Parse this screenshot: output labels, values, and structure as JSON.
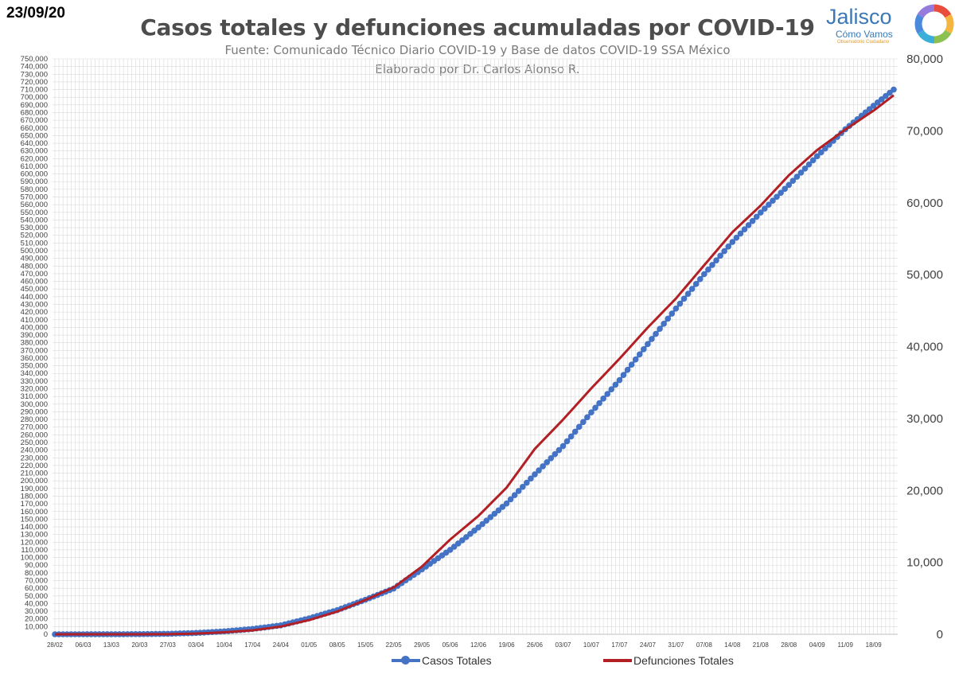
{
  "header": {
    "date": "23/09/20",
    "title": "Casos totales y defunciones acumuladas por COVID-19",
    "subtitle1": "Fuente: Comunicado Técnico Diario COVID-19 y Base de datos COVID-19 SSA México",
    "subtitle2": "Elaborado por Dr. Carlos Alonso R."
  },
  "logo": {
    "name": "Jalisco",
    "sub": "Cómo Vamos",
    "tag": "Observatorio Ciudadano",
    "ring_colors": [
      "#e94e3c",
      "#f4b63f",
      "#8cc152",
      "#3bafda",
      "#4a89dc",
      "#967adc"
    ]
  },
  "legend": {
    "casos": "Casos Totales",
    "defunciones": "Defunciones Totales"
  },
  "colors": {
    "casos": "#4472c4",
    "defunciones": "#b21f24",
    "grid": "#d9d9d9"
  },
  "chart_data": {
    "type": "line",
    "title": "Casos totales y defunciones acumuladas por COVID-19",
    "x_tick_labels": [
      "28/02",
      "06/03",
      "13/03",
      "20/03",
      "27/03",
      "03/04",
      "10/04",
      "17/04",
      "24/04",
      "01/05",
      "08/05",
      "15/05",
      "22/05",
      "29/05",
      "05/06",
      "12/06",
      "19/06",
      "26/06",
      "03/07",
      "10/07",
      "17/07",
      "24/07",
      "31/07",
      "07/08",
      "14/08",
      "21/08",
      "28/08",
      "04/09",
      "11/09",
      "18/09"
    ],
    "x_start": "28/02",
    "x_end": "23/09",
    "ylim_left": [
      0,
      750000
    ],
    "ylim_right": [
      0,
      80000
    ],
    "y_left_step": 10000,
    "y_right_step": 10000,
    "grid": true,
    "legend_position": "bottom",
    "series": [
      {
        "name": "Casos Totales",
        "axis": "left",
        "marker": "circle",
        "points": [
          [
            "28/02",
            0
          ],
          [
            "06/03",
            10
          ],
          [
            "13/03",
            40
          ],
          [
            "20/03",
            200
          ],
          [
            "27/03",
            600
          ],
          [
            "03/04",
            1700
          ],
          [
            "10/04",
            3800
          ],
          [
            "17/04",
            6900
          ],
          [
            "24/04",
            11600
          ],
          [
            "01/05",
            20700
          ],
          [
            "08/05",
            31500
          ],
          [
            "15/05",
            45000
          ],
          [
            "22/05",
            59600
          ],
          [
            "29/05",
            84600
          ],
          [
            "05/06",
            110000
          ],
          [
            "12/06",
            139200
          ],
          [
            "19/06",
            170500
          ],
          [
            "26/06",
            208400
          ],
          [
            "03/07",
            245300
          ],
          [
            "10/07",
            289200
          ],
          [
            "17/07",
            331300
          ],
          [
            "24/07",
            378300
          ],
          [
            "31/07",
            424600
          ],
          [
            "07/08",
            469400
          ],
          [
            "14/08",
            511400
          ],
          [
            "21/08",
            549700
          ],
          [
            "28/08",
            585700
          ],
          [
            "04/09",
            623100
          ],
          [
            "11/09",
            658300
          ],
          [
            "18/09",
            688900
          ],
          [
            "23/09",
            710000
          ]
        ]
      },
      {
        "name": "Defunciones Totales",
        "axis": "right",
        "marker": "none",
        "points": [
          [
            "28/02",
            0
          ],
          [
            "06/03",
            0
          ],
          [
            "13/03",
            0
          ],
          [
            "20/03",
            2
          ],
          [
            "27/03",
            16
          ],
          [
            "03/04",
            94
          ],
          [
            "10/04",
            273
          ],
          [
            "17/04",
            546
          ],
          [
            "24/04",
            1069
          ],
          [
            "01/05",
            1972
          ],
          [
            "08/05",
            3160
          ],
          [
            "15/05",
            4767
          ],
          [
            "22/05",
            6510
          ],
          [
            "29/05",
            9415
          ],
          [
            "05/06",
            13170
          ],
          [
            "12/06",
            16448
          ],
          [
            "19/06",
            20394
          ],
          [
            "26/06",
            25779
          ],
          [
            "03/07",
            29843
          ],
          [
            "10/07",
            34191
          ],
          [
            "17/07",
            38310
          ],
          [
            "24/07",
            42645
          ],
          [
            "31/07",
            46688
          ],
          [
            "07/08",
            51311
          ],
          [
            "14/08",
            55908
          ],
          [
            "21/08",
            59610
          ],
          [
            "28/08",
            63819
          ],
          [
            "04/09",
            67326
          ],
          [
            "11/09",
            70183
          ],
          [
            "18/09",
            72803
          ],
          [
            "23/09",
            74949
          ]
        ]
      }
    ]
  }
}
